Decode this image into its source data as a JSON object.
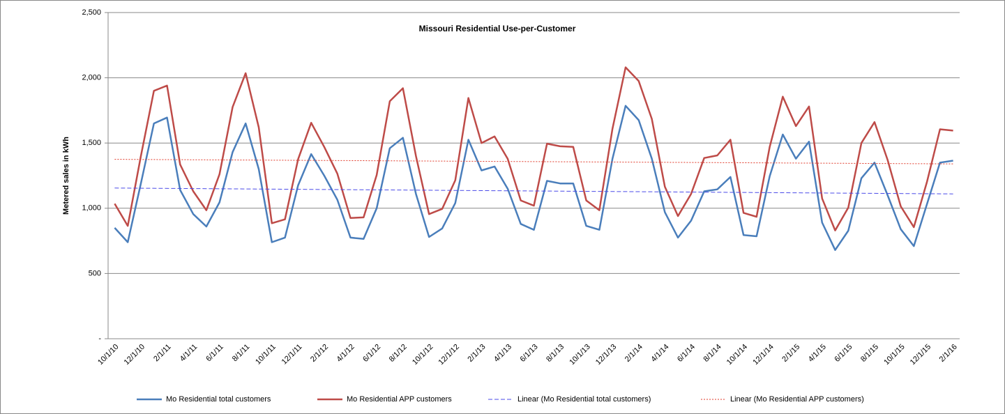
{
  "chart_data": {
    "type": "line",
    "title": "Missouri Residential Use-per-Customer",
    "y_label": "Metered sales in kWh",
    "categories": [
      "10/1/10",
      null,
      "12/1/10",
      null,
      "2/1/11",
      null,
      "4/1/11",
      null,
      "6/1/11",
      null,
      "8/1/11",
      null,
      "10/1/11",
      null,
      "12/1/11",
      null,
      "2/1/12",
      null,
      "4/1/12",
      null,
      "6/1/12",
      null,
      "8/1/12",
      null,
      "10/1/12",
      null,
      "12/1/12",
      null,
      "2/1/13",
      null,
      "4/1/13",
      null,
      "6/1/13",
      null,
      "8/1/13",
      null,
      "10/1/13",
      null,
      "12/1/13",
      null,
      "2/1/14",
      null,
      "4/1/14",
      null,
      "6/1/14",
      null,
      "8/1/14",
      null,
      "10/1/14",
      null,
      "12/1/14",
      null,
      "2/1/15",
      null,
      "4/1/15",
      null,
      "6/1/15",
      null,
      "8/1/15",
      null,
      "10/1/15",
      null,
      "12/1/15",
      null,
      "2/1/16"
    ],
    "series": [
      {
        "name": "Mo Residential total customers",
        "color": "#4a7ebb",
        "values": [
          850,
          740,
          1190,
          1650,
          1695,
          1140,
          955,
          860,
          1045,
          1430,
          1650,
          1300,
          740,
          775,
          1175,
          1415,
          1250,
          1065,
          775,
          765,
          1000,
          1460,
          1540,
          1110,
          780,
          845,
          1040,
          1525,
          1290,
          1320,
          1150,
          880,
          835,
          1210,
          1190,
          1190,
          865,
          835,
          1380,
          1785,
          1675,
          1380,
          970,
          775,
          905,
          1130,
          1145,
          1240,
          795,
          785,
          1245,
          1565,
          1380,
          1510,
          890,
          680,
          828,
          1230,
          1350,
          1100,
          840,
          710,
          1030,
          1350,
          1365
        ]
      },
      {
        "name": "Mo Residential APP customers",
        "color": "#be4b48",
        "values": [
          1035,
          865,
          1400,
          1900,
          1940,
          1335,
          1130,
          985,
          1260,
          1775,
          2035,
          1620,
          885,
          915,
          1375,
          1655,
          1470,
          1265,
          925,
          930,
          1255,
          1820,
          1920,
          1400,
          955,
          995,
          1215,
          1845,
          1500,
          1550,
          1380,
          1060,
          1020,
          1495,
          1475,
          1470,
          1060,
          985,
          1610,
          2080,
          1975,
          1685,
          1165,
          940,
          1110,
          1385,
          1405,
          1525,
          965,
          935,
          1470,
          1855,
          1630,
          1780,
          1075,
          830,
          1005,
          1500,
          1660,
          1370,
          1015,
          855,
          1200,
          1605,
          1595
        ]
      }
    ],
    "trendlines": [
      {
        "name": "Linear (Mo Residential total customers)",
        "color": "#4a4ae8",
        "start": 1155,
        "end": 1110
      },
      {
        "name": "Linear (Mo Residential APP customers)",
        "color": "#e03a2a",
        "start": 1375,
        "end": 1340
      }
    ],
    "ylim": [
      0,
      2500
    ],
    "yticks": [
      {
        "value": 0,
        "label": "-"
      },
      500,
      {
        "value": 1000,
        "label": "1,000"
      },
      {
        "value": 1500,
        "label": "1,500"
      },
      {
        "value": 2000,
        "label": "2,000"
      },
      {
        "value": 2500,
        "label": "2,500"
      }
    ],
    "grid": true,
    "legend": "bottom"
  }
}
